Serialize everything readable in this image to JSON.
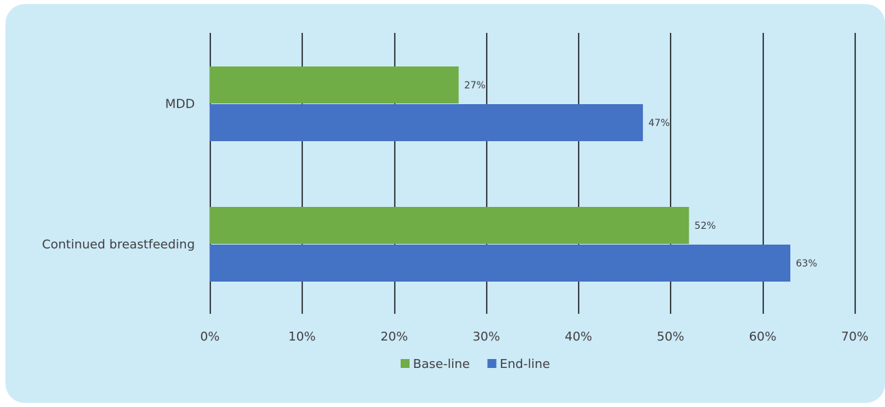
{
  "chart_data": {
    "type": "bar",
    "orientation": "horizontal",
    "categories": [
      "MDD",
      "Continued breastfeeding"
    ],
    "series": [
      {
        "name": "Base-line",
        "values": [
          27,
          52
        ],
        "labels": [
          "27%",
          "52%"
        ],
        "color": "#70ad47"
      },
      {
        "name": "End-line",
        "values": [
          47,
          63
        ],
        "labels": [
          "47%",
          "63%"
        ],
        "color": "#4472c4"
      }
    ],
    "x_ticks": [
      "0%",
      "10%",
      "20%",
      "30%",
      "40%",
      "50%",
      "60%",
      "70%"
    ],
    "xlim": [
      0,
      70
    ],
    "grid": "vertical",
    "legend_position": "bottom",
    "background_color": "#cdeaf7",
    "gridline_color": "#000000"
  }
}
